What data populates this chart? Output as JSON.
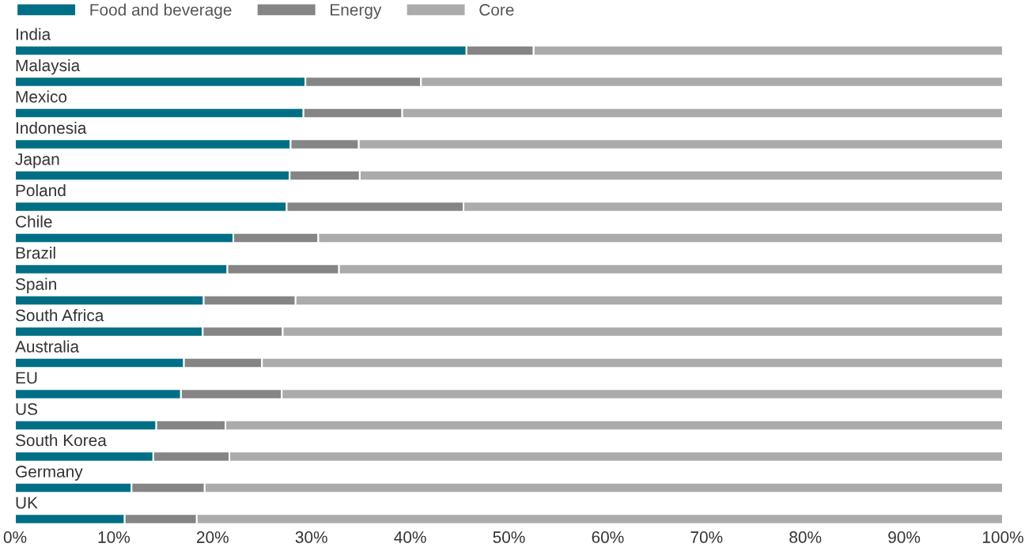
{
  "chart_data": {
    "type": "bar",
    "orientation": "horizontal",
    "stacked": true,
    "categories": [
      "India",
      "Malaysia",
      "Mexico",
      "Indonesia",
      "Japan",
      "Poland",
      "Chile",
      "Brazil",
      "Spain",
      "South Africa",
      "Australia",
      "EU",
      "US",
      "South Korea",
      "Germany",
      "UK"
    ],
    "series": [
      {
        "name": "Food and beverage",
        "color": "#006f86",
        "values": [
          45.7,
          29.4,
          29.2,
          27.9,
          27.8,
          27.5,
          22.1,
          21.5,
          19.1,
          19.0,
          17.1,
          16.8,
          14.3,
          14.0,
          11.8,
          11.1
        ]
      },
      {
        "name": "Energy",
        "color": "#858585",
        "values": [
          6.8,
          11.7,
          10.0,
          6.9,
          7.1,
          17.9,
          8.6,
          11.3,
          9.3,
          8.1,
          7.9,
          10.2,
          7.0,
          7.7,
          7.4,
          7.3
        ]
      },
      {
        "name": "Core",
        "color": "#ababab",
        "values": [
          47.5,
          58.9,
          60.8,
          65.2,
          65.1,
          54.6,
          69.3,
          67.2,
          71.6,
          72.9,
          75.0,
          73.0,
          78.7,
          78.3,
          80.8,
          81.6
        ]
      }
    ],
    "xlim": [
      0,
      100
    ],
    "xticks": [
      {
        "value": 0,
        "label": "0%"
      },
      {
        "value": 10,
        "label": "10%"
      },
      {
        "value": 20,
        "label": "20%"
      },
      {
        "value": 30,
        "label": "30%"
      },
      {
        "value": 40,
        "label": "40%"
      },
      {
        "value": 50,
        "label": "50%"
      },
      {
        "value": 60,
        "label": "60%"
      },
      {
        "value": 70,
        "label": "70%"
      },
      {
        "value": 80,
        "label": "80%"
      },
      {
        "value": 90,
        "label": "90%"
      },
      {
        "value": 100,
        "label": "100%"
      }
    ],
    "legend": "top left",
    "grid": false
  }
}
